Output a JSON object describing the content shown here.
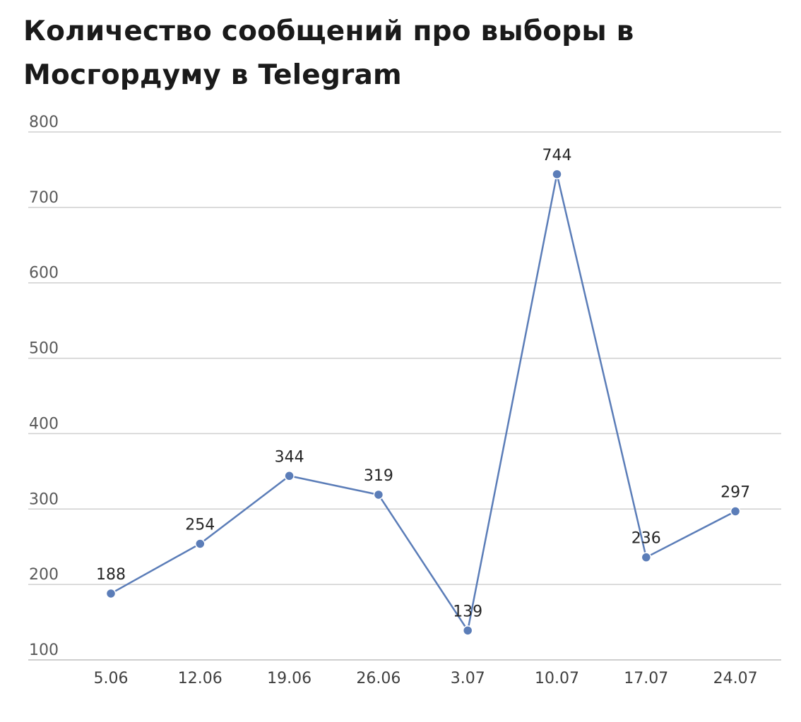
{
  "chart_data": {
    "type": "line",
    "title": "Количество сообщений про выборы в Мосгордуму в Telegram",
    "x": [
      "5.06",
      "12.06",
      "19.06",
      "26.06",
      "3.07",
      "10.07",
      "17.07",
      "24.07"
    ],
    "series": [
      {
        "values": [
          188,
          254,
          344,
          319,
          139,
          744,
          236,
          297
        ],
        "color": "#5b7db8"
      }
    ],
    "yticks": [
      100,
      200,
      300,
      400,
      500,
      600,
      700,
      800
    ],
    "ylim": [
      100,
      800
    ],
    "xlabel": "",
    "ylabel": "",
    "grid": true,
    "legend": "none",
    "data_labels": true
  }
}
